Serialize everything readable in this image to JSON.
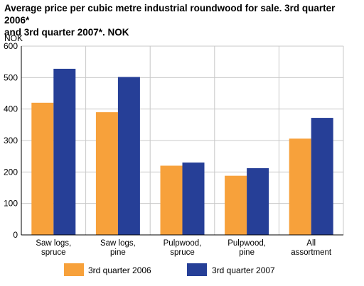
{
  "chart_data": {
    "type": "bar",
    "title_lines": [
      "Average price per cubic metre industrial roundwood for sale. 3rd quarter 2006*",
      "and 3rd quarter 2007*. NOK"
    ],
    "ylabel": "NOK",
    "xlabel": "",
    "ylim": [
      0,
      600
    ],
    "yticks": [
      0,
      100,
      200,
      300,
      400,
      500,
      600
    ],
    "grid": true,
    "legend_position": "bottom",
    "categories": [
      [
        "Saw logs,",
        "spruce"
      ],
      [
        "Saw logs,",
        "pine"
      ],
      [
        "Pulpwood,",
        "spruce"
      ],
      [
        "Pulpwood,",
        "pine"
      ],
      [
        "All",
        "assortment"
      ]
    ],
    "series": [
      {
        "name": "3rd quarter 2006",
        "color": "#f7a13b",
        "values": [
          420,
          390,
          220,
          188,
          306
        ]
      },
      {
        "name": "3rd quarter 2007",
        "color": "#263f97",
        "values": [
          528,
          502,
          230,
          212,
          372
        ]
      }
    ]
  }
}
